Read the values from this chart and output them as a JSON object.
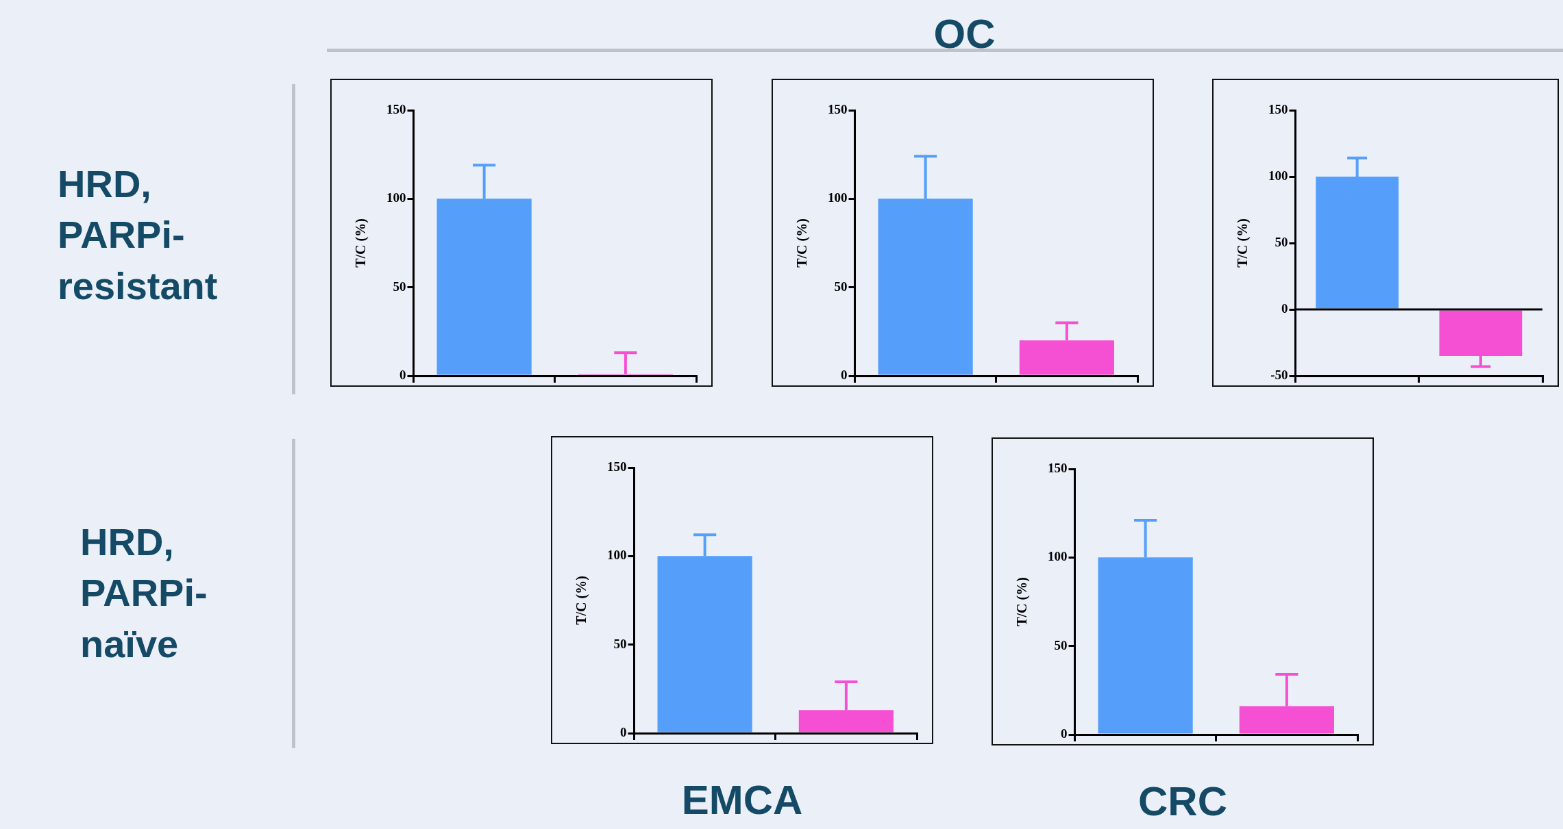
{
  "chart_data": [
    {
      "type": "bar",
      "categories": [
        null,
        null
      ],
      "values": [
        100,
        1
      ],
      "colors": [
        "#559ffb",
        "#f54fd4"
      ],
      "errors": [
        [
          100,
          119
        ],
        [
          1,
          13
        ]
      ],
      "ylabel": "T/C (%)",
      "ylim": [
        0,
        150
      ],
      "yticks": [
        0,
        50,
        100,
        150
      ],
      "annotations": [
        "OC",
        "HRD, PARPi-resistant"
      ]
    },
    {
      "type": "bar",
      "categories": [
        null,
        null
      ],
      "values": [
        100,
        20
      ],
      "colors": [
        "#559ffb",
        "#f54fd4"
      ],
      "errors": [
        [
          100,
          124
        ],
        [
          20,
          30
        ]
      ],
      "ylabel": "T/C (%)",
      "ylim": [
        0,
        150
      ],
      "yticks": [
        0,
        50,
        100,
        150
      ]
    },
    {
      "type": "bar",
      "categories": [
        null,
        null
      ],
      "values": [
        100,
        -35
      ],
      "colors": [
        "#559ffb",
        "#f54fd4"
      ],
      "errors": [
        [
          100,
          114
        ],
        [
          -43,
          -35
        ]
      ],
      "ylabel": "T/C (%)",
      "ylim": [
        -50,
        150
      ],
      "yticks": [
        -50,
        0,
        50,
        100,
        150
      ],
      "ref_lines": [
        {
          "axis": "y",
          "value": 0,
          "color": "#000000"
        }
      ]
    },
    {
      "type": "bar",
      "categories": [
        null,
        null
      ],
      "values": [
        100,
        13
      ],
      "colors": [
        "#559ffb",
        "#f54fd4"
      ],
      "errors": [
        [
          100,
          112
        ],
        [
          13,
          29
        ]
      ],
      "ylabel": "T/C (%)",
      "ylim": [
        0,
        150
      ],
      "yticks": [
        0,
        50,
        100,
        150
      ],
      "xlabel": "EMCA",
      "annotations": [
        "HRD, PARPi-naïve"
      ]
    },
    {
      "type": "bar",
      "categories": [
        null,
        null
      ],
      "values": [
        100,
        16
      ],
      "colors": [
        "#559ffb",
        "#f54fd4"
      ],
      "errors": [
        [
          100,
          121
        ],
        [
          16,
          34
        ]
      ],
      "ylabel": "T/C (%)",
      "ylim": [
        0,
        150
      ],
      "yticks": [
        0,
        50,
        100,
        150
      ],
      "xlabel": "CRC"
    }
  ]
}
